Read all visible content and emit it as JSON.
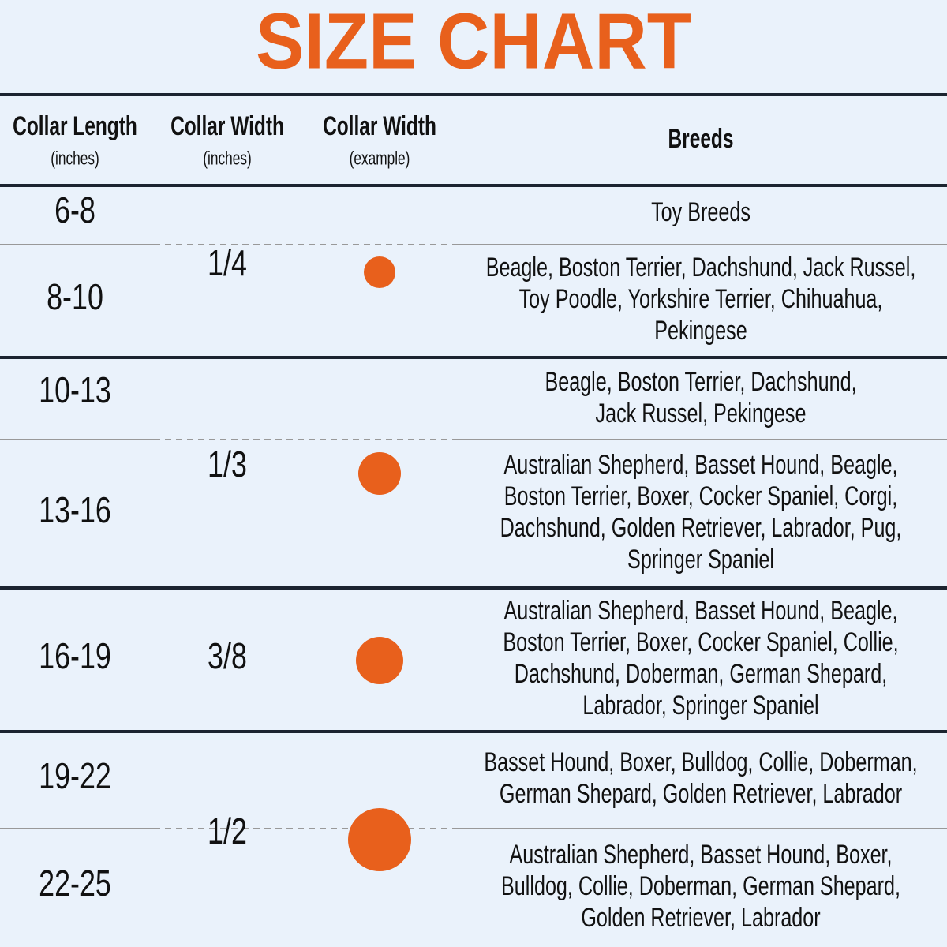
{
  "title": "SIZE CHART",
  "header": [
    {
      "name": "Collar Length",
      "unit": "(inches)"
    },
    {
      "name": "Collar Width",
      "unit": "(inches)"
    },
    {
      "name": "Collar Width",
      "unit": "(example)"
    },
    {
      "name": "Breeds"
    }
  ],
  "groups": [
    {
      "width": "1/4",
      "rows": [
        {
          "length": "6-8",
          "breeds": [
            "Toy Breeds"
          ]
        },
        {
          "length": "8-10",
          "breeds": [
            "Beagle, Boston Terrier, Dachshund, Jack Russel,",
            "Toy Poodle, Yorkshire Terrier, Chihuahua,",
            "Pekingese"
          ]
        }
      ]
    },
    {
      "width": "1/3",
      "rows": [
        {
          "length": "10-13",
          "breeds": [
            "Beagle, Boston Terrier, Dachshund,",
            "Jack Russel, Pekingese"
          ]
        },
        {
          "length": "13-16",
          "breeds": [
            "Australian Shepherd, Basset Hound, Beagle,",
            "Boston Terrier, Boxer, Cocker Spaniel, Corgi,",
            "Dachshund, Golden Retriever, Labrador, Pug,",
            "Springer Spaniel"
          ]
        }
      ]
    },
    {
      "width": "3/8",
      "rows": [
        {
          "length": "16-19",
          "breeds": [
            "Australian Shepherd, Basset Hound, Beagle,",
            "Boston Terrier, Boxer, Cocker Spaniel, Collie,",
            "Dachshund, Doberman, German Shepard,",
            "Labrador, Springer Spaniel"
          ]
        }
      ]
    },
    {
      "width": "1/2",
      "rows": [
        {
          "length": "19-22",
          "breeds": [
            "Basset Hound, Boxer, Bulldog, Collie, Doberman,",
            "German Shepard, Golden Retriever, Labrador"
          ]
        },
        {
          "length": "22-25",
          "breeds": [
            "Australian Shepherd, Basset Hound, Boxer,",
            "Bulldog, Collie, Doberman, German Shepard,",
            "Golden Retriever, Labrador"
          ]
        }
      ]
    }
  ]
}
